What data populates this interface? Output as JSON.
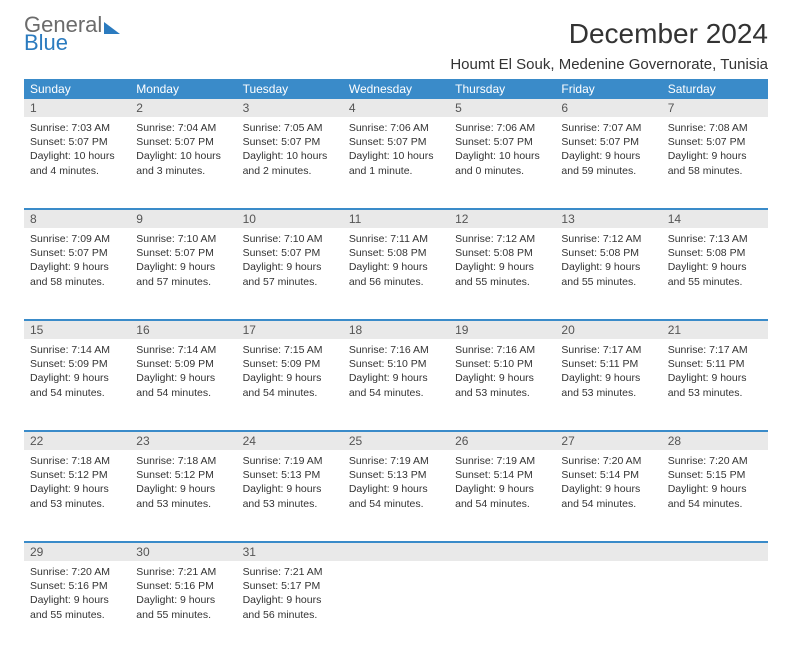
{
  "brand": {
    "word1": "General",
    "word2": "Blue"
  },
  "title": "December 2024",
  "location": "Houmt El Souk, Medenine Governorate, Tunisia",
  "colors": {
    "header_bg": "#3a8bc9",
    "header_text": "#ffffff",
    "daynum_bg": "#e9e9e9",
    "row_divider": "#3a8bc9",
    "logo_accent": "#2b7bbf"
  },
  "day_headers": [
    "Sunday",
    "Monday",
    "Tuesday",
    "Wednesday",
    "Thursday",
    "Friday",
    "Saturday"
  ],
  "weeks": [
    {
      "nums": [
        "1",
        "2",
        "3",
        "4",
        "5",
        "6",
        "7"
      ],
      "cells": [
        {
          "sunrise": "Sunrise: 7:03 AM",
          "sunset": "Sunset: 5:07 PM",
          "day1": "Daylight: 10 hours",
          "day2": "and 4 minutes."
        },
        {
          "sunrise": "Sunrise: 7:04 AM",
          "sunset": "Sunset: 5:07 PM",
          "day1": "Daylight: 10 hours",
          "day2": "and 3 minutes."
        },
        {
          "sunrise": "Sunrise: 7:05 AM",
          "sunset": "Sunset: 5:07 PM",
          "day1": "Daylight: 10 hours",
          "day2": "and 2 minutes."
        },
        {
          "sunrise": "Sunrise: 7:06 AM",
          "sunset": "Sunset: 5:07 PM",
          "day1": "Daylight: 10 hours",
          "day2": "and 1 minute."
        },
        {
          "sunrise": "Sunrise: 7:06 AM",
          "sunset": "Sunset: 5:07 PM",
          "day1": "Daylight: 10 hours",
          "day2": "and 0 minutes."
        },
        {
          "sunrise": "Sunrise: 7:07 AM",
          "sunset": "Sunset: 5:07 PM",
          "day1": "Daylight: 9 hours",
          "day2": "and 59 minutes."
        },
        {
          "sunrise": "Sunrise: 7:08 AM",
          "sunset": "Sunset: 5:07 PM",
          "day1": "Daylight: 9 hours",
          "day2": "and 58 minutes."
        }
      ]
    },
    {
      "nums": [
        "8",
        "9",
        "10",
        "11",
        "12",
        "13",
        "14"
      ],
      "cells": [
        {
          "sunrise": "Sunrise: 7:09 AM",
          "sunset": "Sunset: 5:07 PM",
          "day1": "Daylight: 9 hours",
          "day2": "and 58 minutes."
        },
        {
          "sunrise": "Sunrise: 7:10 AM",
          "sunset": "Sunset: 5:07 PM",
          "day1": "Daylight: 9 hours",
          "day2": "and 57 minutes."
        },
        {
          "sunrise": "Sunrise: 7:10 AM",
          "sunset": "Sunset: 5:07 PM",
          "day1": "Daylight: 9 hours",
          "day2": "and 57 minutes."
        },
        {
          "sunrise": "Sunrise: 7:11 AM",
          "sunset": "Sunset: 5:08 PM",
          "day1": "Daylight: 9 hours",
          "day2": "and 56 minutes."
        },
        {
          "sunrise": "Sunrise: 7:12 AM",
          "sunset": "Sunset: 5:08 PM",
          "day1": "Daylight: 9 hours",
          "day2": "and 55 minutes."
        },
        {
          "sunrise": "Sunrise: 7:12 AM",
          "sunset": "Sunset: 5:08 PM",
          "day1": "Daylight: 9 hours",
          "day2": "and 55 minutes."
        },
        {
          "sunrise": "Sunrise: 7:13 AM",
          "sunset": "Sunset: 5:08 PM",
          "day1": "Daylight: 9 hours",
          "day2": "and 55 minutes."
        }
      ]
    },
    {
      "nums": [
        "15",
        "16",
        "17",
        "18",
        "19",
        "20",
        "21"
      ],
      "cells": [
        {
          "sunrise": "Sunrise: 7:14 AM",
          "sunset": "Sunset: 5:09 PM",
          "day1": "Daylight: 9 hours",
          "day2": "and 54 minutes."
        },
        {
          "sunrise": "Sunrise: 7:14 AM",
          "sunset": "Sunset: 5:09 PM",
          "day1": "Daylight: 9 hours",
          "day2": "and 54 minutes."
        },
        {
          "sunrise": "Sunrise: 7:15 AM",
          "sunset": "Sunset: 5:09 PM",
          "day1": "Daylight: 9 hours",
          "day2": "and 54 minutes."
        },
        {
          "sunrise": "Sunrise: 7:16 AM",
          "sunset": "Sunset: 5:10 PM",
          "day1": "Daylight: 9 hours",
          "day2": "and 54 minutes."
        },
        {
          "sunrise": "Sunrise: 7:16 AM",
          "sunset": "Sunset: 5:10 PM",
          "day1": "Daylight: 9 hours",
          "day2": "and 53 minutes."
        },
        {
          "sunrise": "Sunrise: 7:17 AM",
          "sunset": "Sunset: 5:11 PM",
          "day1": "Daylight: 9 hours",
          "day2": "and 53 minutes."
        },
        {
          "sunrise": "Sunrise: 7:17 AM",
          "sunset": "Sunset: 5:11 PM",
          "day1": "Daylight: 9 hours",
          "day2": "and 53 minutes."
        }
      ]
    },
    {
      "nums": [
        "22",
        "23",
        "24",
        "25",
        "26",
        "27",
        "28"
      ],
      "cells": [
        {
          "sunrise": "Sunrise: 7:18 AM",
          "sunset": "Sunset: 5:12 PM",
          "day1": "Daylight: 9 hours",
          "day2": "and 53 minutes."
        },
        {
          "sunrise": "Sunrise: 7:18 AM",
          "sunset": "Sunset: 5:12 PM",
          "day1": "Daylight: 9 hours",
          "day2": "and 53 minutes."
        },
        {
          "sunrise": "Sunrise: 7:19 AM",
          "sunset": "Sunset: 5:13 PM",
          "day1": "Daylight: 9 hours",
          "day2": "and 53 minutes."
        },
        {
          "sunrise": "Sunrise: 7:19 AM",
          "sunset": "Sunset: 5:13 PM",
          "day1": "Daylight: 9 hours",
          "day2": "and 54 minutes."
        },
        {
          "sunrise": "Sunrise: 7:19 AM",
          "sunset": "Sunset: 5:14 PM",
          "day1": "Daylight: 9 hours",
          "day2": "and 54 minutes."
        },
        {
          "sunrise": "Sunrise: 7:20 AM",
          "sunset": "Sunset: 5:14 PM",
          "day1": "Daylight: 9 hours",
          "day2": "and 54 minutes."
        },
        {
          "sunrise": "Sunrise: 7:20 AM",
          "sunset": "Sunset: 5:15 PM",
          "day1": "Daylight: 9 hours",
          "day2": "and 54 minutes."
        }
      ]
    },
    {
      "nums": [
        "29",
        "30",
        "31",
        "",
        "",
        "",
        ""
      ],
      "cells": [
        {
          "sunrise": "Sunrise: 7:20 AM",
          "sunset": "Sunset: 5:16 PM",
          "day1": "Daylight: 9 hours",
          "day2": "and 55 minutes."
        },
        {
          "sunrise": "Sunrise: 7:21 AM",
          "sunset": "Sunset: 5:16 PM",
          "day1": "Daylight: 9 hours",
          "day2": "and 55 minutes."
        },
        {
          "sunrise": "Sunrise: 7:21 AM",
          "sunset": "Sunset: 5:17 PM",
          "day1": "Daylight: 9 hours",
          "day2": "and 56 minutes."
        },
        {
          "sunrise": "",
          "sunset": "",
          "day1": "",
          "day2": ""
        },
        {
          "sunrise": "",
          "sunset": "",
          "day1": "",
          "day2": ""
        },
        {
          "sunrise": "",
          "sunset": "",
          "day1": "",
          "day2": ""
        },
        {
          "sunrise": "",
          "sunset": "",
          "day1": "",
          "day2": ""
        }
      ]
    }
  ]
}
